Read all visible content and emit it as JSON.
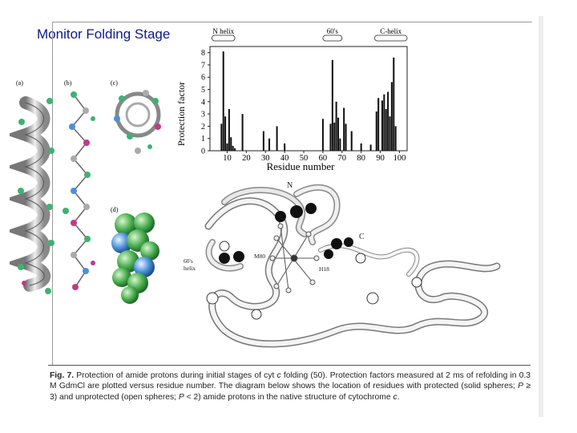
{
  "slide": {
    "title": "Monitor Folding Stage"
  },
  "panels": {
    "a": "(a)",
    "b": "(b)",
    "c": "(c)",
    "d": "(d)"
  },
  "chart_data": {
    "type": "bar",
    "ylabel": "Protection factor",
    "xlabel": "Residue number",
    "xlim": [
      1,
      104
    ],
    "ylim": [
      0,
      8.5
    ],
    "xticks": [
      10,
      20,
      30,
      40,
      50,
      60,
      70,
      80,
      90,
      100
    ],
    "yticks": [
      0,
      1,
      2,
      3,
      4,
      5,
      6,
      7,
      8
    ],
    "regions": [
      {
        "label": "N helix",
        "start": 2,
        "end": 14
      },
      {
        "label": "60's",
        "start": 60,
        "end": 70
      },
      {
        "label": "C-helix",
        "start": 87,
        "end": 104
      }
    ],
    "x": [
      7,
      8,
      9,
      10,
      11,
      12,
      13,
      14,
      18,
      29,
      32,
      36,
      40,
      60,
      64,
      65,
      66,
      67,
      68,
      69,
      71,
      72,
      75,
      80,
      85,
      88,
      89,
      91,
      92,
      93,
      94,
      95,
      96,
      97,
      98
    ],
    "values": [
      2.2,
      8.1,
      2.8,
      0.6,
      3.4,
      1.1,
      0.4,
      0.2,
      3.0,
      1.6,
      1.0,
      2.0,
      0.6,
      2.6,
      2.2,
      7.4,
      2.3,
      4.0,
      2.7,
      1.0,
      3.5,
      2.2,
      1.6,
      0.6,
      0.5,
      3.2,
      4.3,
      4.1,
      4.6,
      3.4,
      4.8,
      2.8,
      5.6,
      7.6,
      2.0
    ]
  },
  "structure_labels": {
    "n": "N",
    "c": "C",
    "m80": "M80",
    "h18": "H18",
    "sixties_helix_1": "60's",
    "sixties_helix_2": "helix"
  },
  "caption": {
    "fig": "Fig. 7.",
    "text_a": " Protection of amide protons during initial stages of cyt ",
    "cyt": "c",
    "text_b": " folding (50). Protection factors measured at 2 ms of refolding in 0.3 M GdmCl are plotted versus residue number. The diagram below shows the location of residues with protected (solid spheres; ",
    "p1": "P",
    "text_c": " ≥ 3) and unprotected (open spheres; ",
    "p2": "P",
    "text_d": " < 2) amide protons in the native structure of cytochrome ",
    "cyt2": "c",
    "end": "."
  }
}
